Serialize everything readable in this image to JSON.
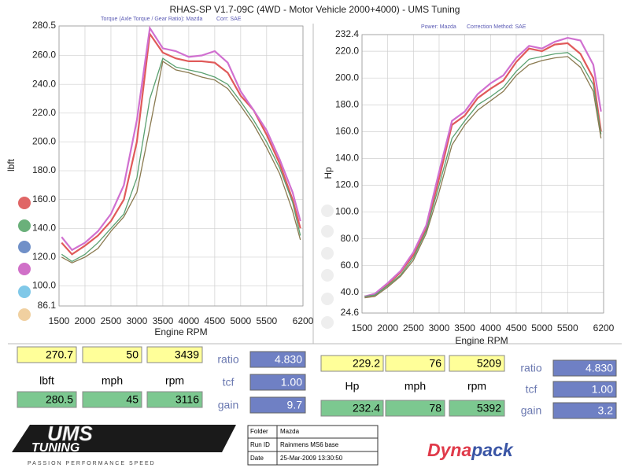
{
  "header": {
    "title": "RHAS-SP V1.7-09C  (4WD - Motor Vehicle 2000+4000) - UMS Tuning",
    "left_sub": [
      "Torque (Axle Torque / Gear Ratio): Mazda",
      "Corr: SAE"
    ],
    "right_sub": [
      "Power: Mazda",
      "Correction Method: SAE"
    ]
  },
  "chart_data": [
    {
      "type": "line",
      "x_label": "Engine RPM",
      "y_label": "lbft",
      "x": [
        1550,
        1750,
        2000,
        2250,
        2500,
        2750,
        3000,
        3250,
        3500,
        3750,
        4000,
        4250,
        4500,
        4750,
        5000,
        5250,
        5500,
        5750,
        6000,
        6150
      ],
      "series": [
        {
          "color": "#e05a5a",
          "values": [
            130,
            122,
            128,
            135,
            145,
            160,
            200,
            275,
            262,
            258,
            256,
            256,
            255,
            248,
            232,
            222,
            205,
            185,
            160,
            140
          ]
        },
        {
          "color": "#d070d0",
          "values": [
            134,
            125,
            130,
            138,
            150,
            170,
            215,
            279,
            265,
            263,
            259,
            260,
            263,
            255,
            235,
            222,
            208,
            188,
            165,
            145
          ]
        },
        {
          "color": "#5aa070",
          "values": [
            122,
            117,
            122,
            130,
            140,
            150,
            175,
            230,
            258,
            252,
            250,
            248,
            245,
            240,
            228,
            215,
            200,
            182,
            158,
            135
          ]
        },
        {
          "color": "#8a7a50",
          "values": [
            120,
            116,
            120,
            126,
            138,
            148,
            165,
            210,
            256,
            250,
            248,
            245,
            243,
            237,
            225,
            212,
            196,
            178,
            152,
            132
          ]
        }
      ],
      "xlim": [
        1500,
        6200
      ],
      "xticks": [
        1500,
        2000,
        2500,
        3000,
        3500,
        4000,
        4500,
        5000,
        5500,
        6200
      ],
      "ylim": [
        86.1,
        280.5
      ],
      "yticks": [
        280.5,
        {
          "value": 260,
          "label": "260.0"
        },
        {
          "value": 240,
          "label": "240.0"
        },
        {
          "value": 220,
          "label": "220.0"
        },
        {
          "value": 200,
          "label": "200.0"
        },
        {
          "value": 180,
          "label": "180.0"
        },
        {
          "value": 160,
          "label": "160.0"
        },
        {
          "value": 140,
          "label": "140.0"
        },
        {
          "value": 120,
          "label": "120.0"
        },
        {
          "value": 100,
          "label": "100.0"
        },
        86.1
      ],
      "grid": true,
      "marker_colors": [
        "#e06666",
        "#6ab07a",
        "#7090c8",
        "#d070c8",
        "#80c8e8",
        "#f0d0a0"
      ]
    },
    {
      "type": "line",
      "x_label": "Engine RPM",
      "y_label": "Hp",
      "x": [
        1550,
        1750,
        2000,
        2250,
        2500,
        2750,
        3000,
        3250,
        3500,
        3750,
        4000,
        4250,
        4500,
        4750,
        5000,
        5250,
        5500,
        5750,
        6000,
        6150
      ],
      "series": [
        {
          "color": "#e05a5a",
          "values": [
            37,
            38,
            46,
            55,
            68,
            88,
            125,
            165,
            172,
            185,
            192,
            198,
            212,
            222,
            220,
            225,
            226,
            218,
            200,
            160
          ]
        },
        {
          "color": "#d070d0",
          "values": [
            37,
            39,
            47,
            56,
            70,
            90,
            130,
            168,
            175,
            188,
            196,
            202,
            215,
            224,
            222,
            227,
            230,
            228,
            210,
            175
          ]
        },
        {
          "color": "#5aa070",
          "values": [
            37,
            38,
            45,
            53,
            66,
            86,
            120,
            155,
            168,
            180,
            186,
            193,
            205,
            214,
            216,
            218,
            219,
            212,
            195,
            158
          ]
        },
        {
          "color": "#8a7a50",
          "values": [
            36,
            37,
            44,
            52,
            64,
            84,
            115,
            150,
            165,
            176,
            183,
            190,
            202,
            210,
            213,
            215,
            216,
            208,
            190,
            155
          ]
        }
      ],
      "xlim": [
        1500,
        6200
      ],
      "xticks": [
        1500,
        2000,
        2500,
        3000,
        3500,
        4000,
        4500,
        5000,
        5500,
        6200
      ],
      "ylim": [
        24.6,
        232.4
      ],
      "yticks": [
        232.4,
        {
          "value": 220,
          "label": "220.0"
        },
        {
          "value": 200,
          "label": "200.0"
        },
        {
          "value": 180,
          "label": "180.0"
        },
        {
          "value": 160,
          "label": "160.0"
        },
        {
          "value": 140,
          "label": "140.0"
        },
        {
          "value": 120,
          "label": "120.0"
        },
        {
          "value": 100,
          "label": "100.0"
        },
        {
          "value": 80,
          "label": "80.0"
        },
        {
          "value": 60,
          "label": "60.0"
        },
        {
          "value": 40,
          "label": "40.0"
        },
        24.6
      ],
      "grid": true,
      "marker_colors": [
        "#eeeeee",
        "#eeeeee",
        "#eeeeee",
        "#eeeeee",
        "#eeeeee",
        "#eeeeee"
      ]
    }
  ],
  "readouts": [
    {
      "top": [
        "270.7",
        "50",
        "3439"
      ],
      "labels": [
        "lbft",
        "mph",
        "rpm"
      ],
      "bottom": [
        "280.5",
        "45",
        "3116"
      ],
      "factors": [
        [
          "ratio",
          "4.830"
        ],
        [
          "tcf",
          "1.00"
        ],
        [
          "gain",
          "9.7"
        ]
      ]
    },
    {
      "top": [
        "229.2",
        "76",
        "5209"
      ],
      "labels": [
        "Hp",
        "mph",
        "rpm"
      ],
      "bottom": [
        "232.4",
        "78",
        "5392"
      ],
      "factors": [
        [
          "ratio",
          "4.830"
        ],
        [
          "tcf",
          "1.00"
        ],
        [
          "gain",
          "3.2"
        ]
      ]
    }
  ],
  "footer": {
    "logo": "UMS",
    "logo_sub": "TUNING",
    "tagline": "PASSION   PERFORMANCE   SPEED",
    "info": [
      [
        "Folder",
        "Mazda"
      ],
      [
        "Run ID",
        "Rainmens MS6 base"
      ],
      [
        "Date",
        "25-Mar-2009  13:30:50"
      ]
    ],
    "brand": [
      "Dyna",
      "pack"
    ]
  }
}
